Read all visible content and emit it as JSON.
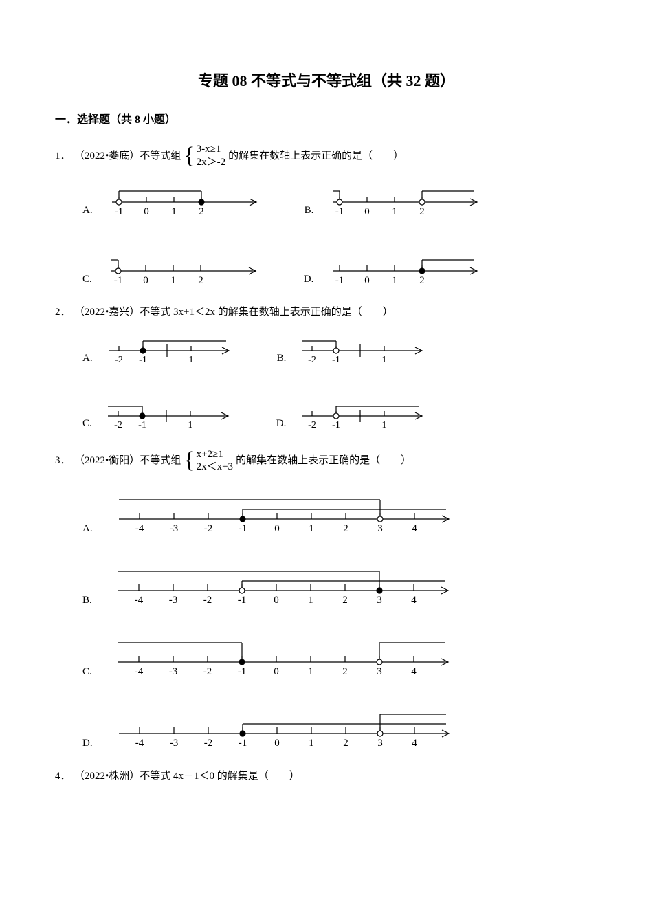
{
  "title": "专题 08 不等式与不等式组（共 32 题）",
  "section_head": "一．选择题（共 8 小题）",
  "blank_paren": "（　　）",
  "colors": {
    "text": "#000000",
    "bg": "#ffffff",
    "stroke": "#000000",
    "fill_solid": "#000000",
    "fill_hollow": "#ffffff"
  },
  "stroke_width": 1.2,
  "q1": {
    "num": "1．",
    "prefix": "（2022•娄底）不等式组",
    "line1": "3-x≥1",
    "line2": "2x＞-2",
    "suffix": "的解集在数轴上表示正确的是",
    "ticks": [
      -1,
      0,
      1,
      2
    ],
    "options": {
      "A": {
        "label": "A.",
        "left_val": -1,
        "left_open": true,
        "right_val": 2,
        "right_open": false,
        "show_left": true,
        "show_right": true,
        "left_dir": "right",
        "right_dir": "left"
      },
      "B": {
        "label": "B.",
        "left_val": -1,
        "left_open": true,
        "right_val": 2,
        "right_open": true,
        "show_left": true,
        "show_right": true,
        "left_dir": "left",
        "right_dir": "right"
      },
      "C": {
        "label": "C.",
        "left_val": -1,
        "left_open": true,
        "right_val": 2,
        "right_open": false,
        "show_left": true,
        "show_right": false,
        "left_dir": "left",
        "right_dir": "none"
      },
      "D": {
        "label": "D.",
        "left_val": -1,
        "left_open": true,
        "right_val": 2,
        "right_open": false,
        "show_left": false,
        "show_right": true,
        "left_dir": "none",
        "right_dir": "right"
      }
    }
  },
  "q2": {
    "num": "2．",
    "text": "（2022•嘉兴）不等式 3x+1＜2x 的解集在数轴上表示正确的是",
    "ticks": [
      -2,
      -1,
      1
    ],
    "zero_pos": 0,
    "options": {
      "A": {
        "label": "A.",
        "point_val": -1,
        "open": false,
        "dir": "right"
      },
      "B": {
        "label": "B.",
        "point_val": -1,
        "open": true,
        "dir": "left"
      },
      "C": {
        "label": "C.",
        "point_val": -1,
        "open": false,
        "dir": "left"
      },
      "D": {
        "label": "D.",
        "point_val": -1,
        "open": true,
        "dir": "right"
      }
    }
  },
  "q3": {
    "num": "3．",
    "prefix": "（2022•衡阳）不等式组",
    "line1": "x+2≥1",
    "line2": "2x＜x+3",
    "suffix": "的解集在数轴上表示正确的是",
    "ticks": [
      -4,
      -3,
      -2,
      -1,
      0,
      1,
      2,
      3,
      4
    ],
    "options": {
      "A": {
        "label": "A.",
        "left_val": -1,
        "left_open": false,
        "right_val": 3,
        "right_open": true
      },
      "B": {
        "label": "B.",
        "left_val": -1,
        "left_open": true,
        "right_val": 3,
        "right_open": false
      },
      "C": {
        "label": "C.",
        "left_val": -1,
        "left_open": false,
        "right_val": 3,
        "right_open": true,
        "outer": true
      },
      "D": {
        "label": "D.",
        "left_val": -1,
        "left_open": false,
        "right_val": 3,
        "right_open": true,
        "outer2": true
      }
    }
  },
  "q4": {
    "num": "4．",
    "text": "（2022•株洲）不等式 4x－1＜0 的解集是"
  }
}
